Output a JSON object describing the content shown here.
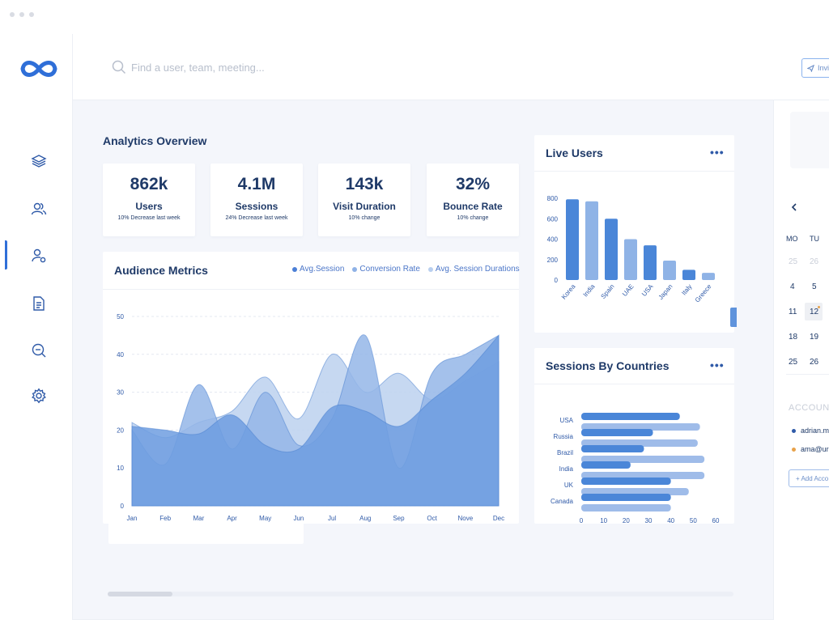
{
  "window": {
    "dots": 3
  },
  "search": {
    "placeholder": "Find a user, team, meeting..."
  },
  "header": {
    "invite_label": "Invi"
  },
  "sidebar": {
    "items": [
      "layers-icon",
      "users-icon",
      "user-settings-icon",
      "document-icon",
      "chat-icon",
      "gear-icon"
    ],
    "active_index": 2
  },
  "analytics": {
    "title": "Analytics Overview",
    "stats": [
      {
        "value": "862k",
        "label": "Users",
        "sub": "10% Decrease last week"
      },
      {
        "value": "4.1M",
        "label": "Sessions",
        "sub": "24% Decrease last week"
      },
      {
        "value": "143k",
        "label": "Visit Duration",
        "sub": "10% change"
      },
      {
        "value": "32%",
        "label": "Bounce Rate",
        "sub": "10% change"
      }
    ]
  },
  "audience": {
    "title": "Audience Metrics",
    "legend": [
      {
        "label": "Avg.Session",
        "color": "#4b7fd6"
      },
      {
        "label": "Conversion Rate",
        "color": "#8fb2e6"
      },
      {
        "label": "Avg. Session Durations",
        "color": "#b9cfef"
      }
    ]
  },
  "live_users": {
    "title": "Live Users",
    "more": "•••"
  },
  "sessions_countries": {
    "title": "Sessions By Countries",
    "more": "•••"
  },
  "calendar": {
    "weekdays": [
      "MO",
      "TU"
    ],
    "rows": [
      [
        "25",
        "26"
      ],
      [
        "4",
        "5"
      ],
      [
        "11",
        "12"
      ],
      [
        "18",
        "19"
      ],
      [
        "25",
        "26"
      ]
    ],
    "selected": "12"
  },
  "accounts": {
    "title": "ACCOUNTS",
    "items": [
      {
        "label": "adrian.m",
        "color": "#2f5aa8"
      },
      {
        "label": "ama@ur",
        "color": "#e8a24a"
      }
    ],
    "add_label": "+ Add Acco"
  },
  "colors": {
    "primary": "#2f6fd8",
    "dark": "#1f3a68",
    "light": "#8fb2e6"
  },
  "chart_data": [
    {
      "type": "area",
      "title": "Audience Metrics",
      "x": [
        "Jan",
        "Feb",
        "Mar",
        "Apr",
        "May",
        "Jun",
        "Jul",
        "Aug",
        "Sep",
        "Oct",
        "Nove",
        "Dec"
      ],
      "ylim": [
        0,
        50
      ],
      "yticks": [
        0,
        10,
        20,
        30,
        40,
        50
      ],
      "grid": true,
      "series": [
        {
          "name": "Avg. Session Durations",
          "color": "#bcd1ef",
          "values": [
            22,
            18,
            22,
            25,
            34,
            23,
            40,
            30,
            35,
            28,
            33,
            38
          ]
        },
        {
          "name": "Conversion Rate",
          "color": "#94b6e8",
          "values": [
            20,
            11,
            32,
            15,
            30,
            16,
            23,
            45,
            10,
            35,
            40,
            45
          ]
        },
        {
          "name": "Avg.Session",
          "color": "#6e9ee0",
          "values": [
            21,
            20,
            19,
            24,
            16,
            15,
            26,
            25,
            21,
            28,
            35,
            45
          ]
        }
      ]
    },
    {
      "type": "bar",
      "title": "Live Users",
      "categories": [
        "Korea",
        "India",
        "Spain",
        "UAE",
        "USA",
        "Japan",
        "Italy",
        "Greece"
      ],
      "values": [
        790,
        770,
        600,
        400,
        340,
        190,
        100,
        70
      ],
      "colors": [
        "#4a86d8",
        "#8fb3e6",
        "#4a86d8",
        "#8fb3e6",
        "#4a86d8",
        "#8fb3e6",
        "#4a86d8",
        "#8fb3e6"
      ],
      "ylim": [
        0,
        800
      ],
      "yticks": [
        0,
        200,
        400,
        600,
        800
      ]
    },
    {
      "type": "bar",
      "orientation": "horizontal",
      "title": "Sessions By Countries",
      "categories": [
        "USA",
        "Russia",
        "Brazil",
        "India",
        "UK",
        "Canada"
      ],
      "series": [
        {
          "values": [
            44,
            32,
            28,
            22,
            40,
            40
          ],
          "color": "#4a86d8"
        },
        {
          "values": [
            53,
            52,
            55,
            55,
            48,
            40
          ],
          "color": "#9fbce9"
        }
      ],
      "xlim": [
        0,
        60
      ],
      "xticks": [
        0,
        10,
        20,
        30,
        40,
        50,
        60
      ]
    }
  ]
}
